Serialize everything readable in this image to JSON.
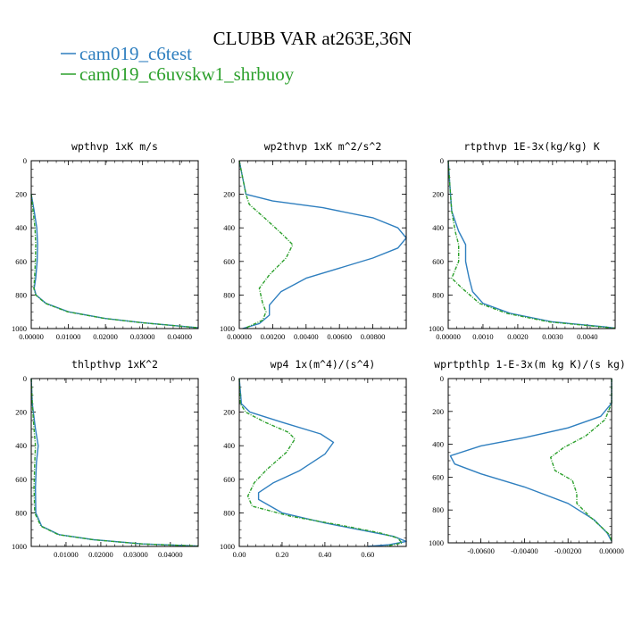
{
  "figure": {
    "title": "CLUBB VAR at263E,36N",
    "legend": [
      {
        "name": "cam019_c6test",
        "color": "#2f7fbf",
        "dash": "solid"
      },
      {
        "name": "cam019_c6uvskw1_shrbuoy",
        "color": "#2ca02c",
        "dash": "dashdot"
      }
    ]
  },
  "chart_data": [
    {
      "type": "line",
      "title": "wpthvp  1xK m/s",
      "xlim": [
        0,
        0.045
      ],
      "ylim": [
        1000,
        0
      ],
      "xticks": [
        0,
        0.01,
        0.02,
        0.03,
        0.04
      ],
      "xticklabels": [
        "0.00000",
        "0.01000",
        "0.02000",
        "0.03000",
        "0.04000"
      ],
      "yticks": [
        0,
        200,
        400,
        600,
        800,
        1000
      ],
      "yticklabels": [
        "0",
        "200",
        "400",
        "600",
        "800",
        "1000"
      ],
      "series": [
        {
          "name": "cam019_c6test",
          "points": [
            [
              0.0,
              200
            ],
            [
              0.0008,
              300
            ],
            [
              0.0015,
              400
            ],
            [
              0.0017,
              500
            ],
            [
              0.0016,
              600
            ],
            [
              0.0012,
              700
            ],
            [
              0.0008,
              760
            ],
            [
              0.0013,
              800
            ],
            [
              0.004,
              850
            ],
            [
              0.01,
              900
            ],
            [
              0.02,
              940
            ],
            [
              0.03,
              965
            ],
            [
              0.04,
              985
            ],
            [
              0.045,
              995
            ]
          ]
        },
        {
          "name": "cam019_c6uvskw1_shrbuoy",
          "points": [
            [
              0.0,
              200
            ],
            [
              0.0005,
              300
            ],
            [
              0.001,
              400
            ],
            [
              0.0012,
              500
            ],
            [
              0.0011,
              600
            ],
            [
              0.0009,
              700
            ],
            [
              0.0007,
              760
            ],
            [
              0.0012,
              800
            ],
            [
              0.0038,
              850
            ],
            [
              0.0098,
              900
            ],
            [
              0.0198,
              940
            ],
            [
              0.0298,
              965
            ],
            [
              0.0398,
              985
            ],
            [
              0.045,
              995
            ]
          ]
        }
      ]
    },
    {
      "type": "line",
      "title": "wp2thvp  1xK m^2/s^2",
      "xlim": [
        0,
        0.01
      ],
      "ylim": [
        1000,
        0
      ],
      "xticks": [
        0,
        0.002,
        0.004,
        0.006,
        0.008
      ],
      "xticklabels": [
        "0.00000",
        "0.00200",
        "0.00400",
        "0.00600",
        "0.00800"
      ],
      "yticks": [
        0,
        200,
        400,
        600,
        800,
        1000
      ],
      "yticklabels": [
        "0",
        "200",
        "400",
        "600",
        "800",
        "1000"
      ],
      "series": [
        {
          "name": "cam019_c6test",
          "points": [
            [
              0.0,
              0
            ],
            [
              0.0002,
              100
            ],
            [
              0.0004,
              200
            ],
            [
              0.002,
              240
            ],
            [
              0.005,
              280
            ],
            [
              0.008,
              340
            ],
            [
              0.0095,
              400
            ],
            [
              0.01,
              460
            ],
            [
              0.0095,
              520
            ],
            [
              0.008,
              580
            ],
            [
              0.006,
              640
            ],
            [
              0.004,
              700
            ],
            [
              0.0025,
              780
            ],
            [
              0.0018,
              860
            ],
            [
              0.0018,
              920
            ],
            [
              0.0012,
              970
            ],
            [
              0.0002,
              1000
            ]
          ]
        },
        {
          "name": "cam019_c6uvskw1_shrbuoy",
          "points": [
            [
              0.0,
              0
            ],
            [
              0.0002,
              100
            ],
            [
              0.0004,
              200
            ],
            [
              0.0006,
              260
            ],
            [
              0.0015,
              340
            ],
            [
              0.0026,
              440
            ],
            [
              0.0032,
              500
            ],
            [
              0.0028,
              580
            ],
            [
              0.0018,
              680
            ],
            [
              0.0012,
              760
            ],
            [
              0.0014,
              850
            ],
            [
              0.0016,
              900
            ],
            [
              0.0014,
              950
            ],
            [
              0.0003,
              1000
            ]
          ]
        }
      ]
    },
    {
      "type": "line",
      "title": "rtpthvp  1E-3x(kg/kg) K",
      "xlim": [
        0,
        0.0048
      ],
      "ylim": [
        1000,
        0
      ],
      "xticks": [
        0,
        0.001,
        0.002,
        0.003,
        0.004
      ],
      "xticklabels": [
        "0.00000",
        "0.0010",
        "0.0020",
        "0.0030",
        "0.0040"
      ],
      "yticks": [
        0,
        200,
        400,
        600,
        800,
        1000
      ],
      "yticklabels": [
        "0",
        "200",
        "400",
        "600",
        "800",
        "1000"
      ],
      "series": [
        {
          "name": "cam019_c6test",
          "points": [
            [
              0.0,
              0
            ],
            [
              5e-05,
              150
            ],
            [
              0.0001,
              300
            ],
            [
              0.0003,
              420
            ],
            [
              0.0005,
              500
            ],
            [
              0.0005,
              600
            ],
            [
              0.0006,
              700
            ],
            [
              0.0007,
              780
            ],
            [
              0.001,
              850
            ],
            [
              0.0018,
              910
            ],
            [
              0.003,
              960
            ],
            [
              0.0045,
              990
            ],
            [
              0.0048,
              998
            ]
          ]
        },
        {
          "name": "cam019_c6uvskw1_shrbuoy",
          "points": [
            [
              0.0,
              0
            ],
            [
              5e-05,
              150
            ],
            [
              0.0001,
              300
            ],
            [
              0.0002,
              420
            ],
            [
              0.0003,
              500
            ],
            [
              0.0003,
              600
            ],
            [
              0.0001,
              700
            ],
            [
              0.0004,
              760
            ],
            [
              0.0009,
              850
            ],
            [
              0.0017,
              910
            ],
            [
              0.0029,
              960
            ],
            [
              0.0044,
              990
            ],
            [
              0.0048,
              998
            ]
          ]
        }
      ]
    },
    {
      "type": "line",
      "title": "thlpthvp  1xK^2",
      "xlim": [
        0,
        0.048
      ],
      "ylim": [
        1000,
        0
      ],
      "xticks": [
        0.01,
        0.02,
        0.03,
        0.04
      ],
      "xticklabels": [
        "0.01000",
        "0.02000",
        "0.03000",
        "0.04000"
      ],
      "yticks": [
        0,
        200,
        400,
        600,
        800,
        1000
      ],
      "yticklabels": [
        "0",
        "200",
        "400",
        "600",
        "800",
        "1000"
      ],
      "series": [
        {
          "name": "cam019_c6test",
          "points": [
            [
              0.0,
              0
            ],
            [
              0.0003,
              150
            ],
            [
              0.0012,
              300
            ],
            [
              0.002,
              400
            ],
            [
              0.0015,
              500
            ],
            [
              0.0012,
              650
            ],
            [
              0.0013,
              800
            ],
            [
              0.003,
              880
            ],
            [
              0.008,
              930
            ],
            [
              0.018,
              960
            ],
            [
              0.032,
              985
            ],
            [
              0.048,
              998
            ]
          ]
        },
        {
          "name": "cam019_c6uvskw1_shrbuoy",
          "points": [
            [
              0.0,
              0
            ],
            [
              0.0003,
              150
            ],
            [
              0.0008,
              300
            ],
            [
              0.0012,
              400
            ],
            [
              0.001,
              500
            ],
            [
              0.0008,
              650
            ],
            [
              0.001,
              800
            ],
            [
              0.0028,
              880
            ],
            [
              0.0078,
              930
            ],
            [
              0.0178,
              960
            ],
            [
              0.0318,
              985
            ],
            [
              0.048,
              998
            ]
          ]
        }
      ]
    },
    {
      "type": "line",
      "title": "wp4  1x(m^4)/(s^4)",
      "xlim": [
        0,
        0.78
      ],
      "ylim": [
        1000,
        0
      ],
      "xticks": [
        0,
        0.2,
        0.4,
        0.6
      ],
      "xticklabels": [
        "0.00",
        "0.20",
        "0.40",
        "0.60"
      ],
      "yticks": [
        0,
        200,
        400,
        600,
        800,
        1000
      ],
      "yticklabels": [
        "0",
        "200",
        "400",
        "600",
        "800",
        "1000"
      ],
      "series": [
        {
          "name": "cam019_c6test",
          "points": [
            [
              0.0,
              0
            ],
            [
              0.01,
              150
            ],
            [
              0.05,
              200
            ],
            [
              0.2,
              260
            ],
            [
              0.38,
              330
            ],
            [
              0.44,
              380
            ],
            [
              0.4,
              450
            ],
            [
              0.28,
              550
            ],
            [
              0.16,
              620
            ],
            [
              0.09,
              680
            ],
            [
              0.09,
              720
            ],
            [
              0.2,
              800
            ],
            [
              0.4,
              860
            ],
            [
              0.6,
              910
            ],
            [
              0.72,
              940
            ],
            [
              0.78,
              970
            ],
            [
              0.7,
              990
            ],
            [
              0.6,
              1000
            ]
          ]
        },
        {
          "name": "cam019_c6uvskw1_shrbuoy",
          "points": [
            [
              0.0,
              0
            ],
            [
              0.005,
              150
            ],
            [
              0.03,
              200
            ],
            [
              0.12,
              260
            ],
            [
              0.23,
              320
            ],
            [
              0.26,
              360
            ],
            [
              0.22,
              440
            ],
            [
              0.13,
              540
            ],
            [
              0.07,
              620
            ],
            [
              0.04,
              700
            ],
            [
              0.06,
              760
            ],
            [
              0.24,
              820
            ],
            [
              0.46,
              870
            ],
            [
              0.66,
              920
            ],
            [
              0.74,
              950
            ],
            [
              0.76,
              980
            ],
            [
              0.68,
              1000
            ]
          ]
        }
      ]
    },
    {
      "type": "line",
      "title": "wprtpthlp  1-E-3x(m kg K)/(s kg)",
      "xlim": [
        -0.0075,
        0.0
      ],
      "ylim": [
        1000,
        0
      ],
      "xticks": [
        -0.006,
        -0.004,
        -0.002,
        0.0
      ],
      "xticklabels": [
        "-0.00600",
        "-0.00400",
        "-0.00200",
        "0.00000"
      ],
      "yticks": [
        0,
        200,
        400,
        600,
        800,
        1000
      ],
      "yticklabels": [
        "0",
        "200",
        "400",
        "600",
        "800",
        "1000"
      ],
      "series": [
        {
          "name": "cam019_c6test",
          "points": [
            [
              0.0,
              0
            ],
            [
              0.0,
              150
            ],
            [
              -0.0005,
              230
            ],
            [
              -0.002,
              300
            ],
            [
              -0.004,
              360
            ],
            [
              -0.006,
              410
            ],
            [
              -0.0074,
              470
            ],
            [
              -0.0072,
              520
            ],
            [
              -0.006,
              580
            ],
            [
              -0.004,
              660
            ],
            [
              -0.002,
              760
            ],
            [
              -0.0008,
              860
            ],
            [
              -0.0002,
              940
            ],
            [
              0.0,
              990
            ]
          ]
        },
        {
          "name": "cam019_c6uvskw1_shrbuoy",
          "points": [
            [
              0.0,
              0
            ],
            [
              0.0,
              150
            ],
            [
              -0.0003,
              250
            ],
            [
              -0.0012,
              350
            ],
            [
              -0.0022,
              420
            ],
            [
              -0.0028,
              480
            ],
            [
              -0.0026,
              560
            ],
            [
              -0.0018,
              620
            ],
            [
              -0.0016,
              700
            ],
            [
              -0.0016,
              760
            ],
            [
              -0.001,
              840
            ],
            [
              -0.0005,
              900
            ],
            [
              -0.0001,
              950
            ],
            [
              0.0,
              990
            ]
          ]
        }
      ]
    }
  ]
}
